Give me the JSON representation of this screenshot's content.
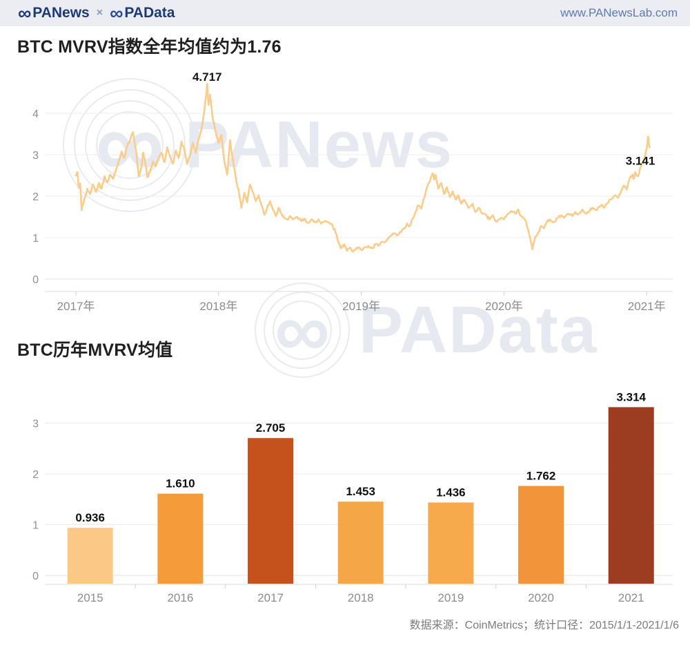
{
  "header": {
    "logo1": "PANews",
    "separator": "×",
    "logo2": "PAData",
    "url": "www.PANewsLab.com",
    "brand_color": "#1c3a7a"
  },
  "icons": {
    "infinity": "∞"
  },
  "watermarks": {
    "w1": "PANews",
    "w2": "PAData"
  },
  "footer": {
    "source": "数据来源：CoinMetrics；统计口径：2015/1/1-2021/1/6"
  },
  "chart_data": [
    {
      "type": "line",
      "title": "BTC MVRV指数全年均值约为1.76",
      "xlabel": "",
      "ylabel": "",
      "xticklabels": [
        "2017年",
        "2018年",
        "2019年",
        "2020年",
        "2021年"
      ],
      "xtick_years": [
        2017,
        2018,
        2019,
        2020,
        2021
      ],
      "yticks": [
        0,
        1,
        2,
        3,
        4
      ],
      "ylim": [
        0,
        4.8
      ],
      "xlim": [
        2016.95,
        2021.05
      ],
      "grid": true,
      "legend": "none",
      "line_gradient_low_to_high": [
        "#fbcc8a",
        "#f5a94e",
        "#e87f2e",
        "#c2490f",
        "#9e2f0c"
      ],
      "annotations": [
        {
          "x": 2017.92,
          "v": 4.717,
          "label": "4.717"
        },
        {
          "x": 2020.98,
          "v": 3.141,
          "label": "3.141"
        }
      ],
      "points": [
        [
          2017.0,
          2.5
        ],
        [
          2017.01,
          2.58
        ],
        [
          2017.02,
          2.2
        ],
        [
          2017.03,
          2.3
        ],
        [
          2017.04,
          1.66
        ],
        [
          2017.06,
          1.95
        ],
        [
          2017.08,
          2.18
        ],
        [
          2017.1,
          2.05
        ],
        [
          2017.12,
          2.28
        ],
        [
          2017.14,
          2.1
        ],
        [
          2017.16,
          2.32
        ],
        [
          2017.18,
          2.18
        ],
        [
          2017.2,
          2.48
        ],
        [
          2017.22,
          2.34
        ],
        [
          2017.24,
          2.52
        ],
        [
          2017.26,
          2.42
        ],
        [
          2017.28,
          2.62
        ],
        [
          2017.3,
          2.85
        ],
        [
          2017.32,
          3.08
        ],
        [
          2017.34,
          2.92
        ],
        [
          2017.36,
          3.22
        ],
        [
          2017.38,
          3.36
        ],
        [
          2017.4,
          3.55
        ],
        [
          2017.42,
          3.12
        ],
        [
          2017.44,
          2.48
        ],
        [
          2017.46,
          2.72
        ],
        [
          2017.47,
          3.05
        ],
        [
          2017.48,
          2.92
        ],
        [
          2017.5,
          2.46
        ],
        [
          2017.52,
          2.6
        ],
        [
          2017.54,
          2.84
        ],
        [
          2017.56,
          2.72
        ],
        [
          2017.58,
          2.92
        ],
        [
          2017.6,
          3.05
        ],
        [
          2017.62,
          2.82
        ],
        [
          2017.64,
          3.18
        ],
        [
          2017.66,
          2.95
        ],
        [
          2017.68,
          2.78
        ],
        [
          2017.7,
          3.1
        ],
        [
          2017.72,
          2.92
        ],
        [
          2017.74,
          3.32
        ],
        [
          2017.76,
          3.12
        ],
        [
          2017.78,
          2.78
        ],
        [
          2017.8,
          2.98
        ],
        [
          2017.82,
          3.28
        ],
        [
          2017.84,
          3.05
        ],
        [
          2017.86,
          3.38
        ],
        [
          2017.88,
          3.62
        ],
        [
          2017.9,
          4.05
        ],
        [
          2017.92,
          4.717
        ],
        [
          2017.93,
          4.2
        ],
        [
          2017.94,
          4.45
        ],
        [
          2017.96,
          3.85
        ],
        [
          2017.98,
          3.55
        ],
        [
          2018.0,
          3.28
        ],
        [
          2018.02,
          3.48
        ],
        [
          2018.04,
          2.85
        ],
        [
          2018.06,
          2.52
        ],
        [
          2018.08,
          3.35
        ],
        [
          2018.1,
          2.88
        ],
        [
          2018.12,
          2.45
        ],
        [
          2018.14,
          2.15
        ],
        [
          2018.16,
          1.72
        ],
        [
          2018.18,
          2.08
        ],
        [
          2018.2,
          1.85
        ],
        [
          2018.22,
          2.28
        ],
        [
          2018.24,
          2.1
        ],
        [
          2018.26,
          1.88
        ],
        [
          2018.28,
          2.02
        ],
        [
          2018.3,
          1.78
        ],
        [
          2018.32,
          1.55
        ],
        [
          2018.34,
          1.72
        ],
        [
          2018.36,
          1.88
        ],
        [
          2018.38,
          1.68
        ],
        [
          2018.4,
          1.52
        ],
        [
          2018.42,
          1.72
        ],
        [
          2018.44,
          1.58
        ],
        [
          2018.46,
          1.48
        ],
        [
          2018.48,
          1.44
        ],
        [
          2018.5,
          1.52
        ],
        [
          2018.52,
          1.44
        ],
        [
          2018.55,
          1.5
        ],
        [
          2018.58,
          1.4
        ],
        [
          2018.6,
          1.46
        ],
        [
          2018.62,
          1.36
        ],
        [
          2018.65,
          1.44
        ],
        [
          2018.68,
          1.38
        ],
        [
          2018.7,
          1.44
        ],
        [
          2018.72,
          1.34
        ],
        [
          2018.75,
          1.4
        ],
        [
          2018.78,
          1.34
        ],
        [
          2018.8,
          1.28
        ],
        [
          2018.82,
          1.12
        ],
        [
          2018.84,
          0.88
        ],
        [
          2018.86,
          0.74
        ],
        [
          2018.88,
          0.84
        ],
        [
          2018.9,
          0.68
        ],
        [
          2018.92,
          0.76
        ],
        [
          2018.94,
          0.66
        ],
        [
          2018.96,
          0.72
        ],
        [
          2018.98,
          0.76
        ],
        [
          2019.0,
          0.7
        ],
        [
          2019.02,
          0.76
        ],
        [
          2019.05,
          0.8
        ],
        [
          2019.08,
          0.74
        ],
        [
          2019.1,
          0.84
        ],
        [
          2019.12,
          0.8
        ],
        [
          2019.15,
          0.9
        ],
        [
          2019.18,
          0.95
        ],
        [
          2019.2,
          1.02
        ],
        [
          2019.22,
          1.1
        ],
        [
          2019.25,
          1.05
        ],
        [
          2019.28,
          1.14
        ],
        [
          2019.3,
          1.22
        ],
        [
          2019.32,
          1.34
        ],
        [
          2019.34,
          1.28
        ],
        [
          2019.36,
          1.45
        ],
        [
          2019.38,
          1.62
        ],
        [
          2019.4,
          1.78
        ],
        [
          2019.42,
          1.7
        ],
        [
          2019.44,
          1.95
        ],
        [
          2019.46,
          2.2
        ],
        [
          2019.48,
          2.35
        ],
        [
          2019.5,
          2.55
        ],
        [
          2019.51,
          2.4
        ],
        [
          2019.52,
          2.52
        ],
        [
          2019.54,
          2.18
        ],
        [
          2019.56,
          2.32
        ],
        [
          2019.58,
          2.05
        ],
        [
          2019.6,
          2.22
        ],
        [
          2019.62,
          1.98
        ],
        [
          2019.64,
          2.12
        ],
        [
          2019.66,
          1.92
        ],
        [
          2019.68,
          2.02
        ],
        [
          2019.7,
          1.82
        ],
        [
          2019.72,
          1.92
        ],
        [
          2019.75,
          1.72
        ],
        [
          2019.78,
          1.82
        ],
        [
          2019.8,
          1.62
        ],
        [
          2019.82,
          1.72
        ],
        [
          2019.85,
          1.58
        ],
        [
          2019.88,
          1.52
        ],
        [
          2019.9,
          1.44
        ],
        [
          2019.92,
          1.54
        ],
        [
          2019.95,
          1.38
        ],
        [
          2019.98,
          1.48
        ],
        [
          2020.0,
          1.44
        ],
        [
          2020.02,
          1.54
        ],
        [
          2020.05,
          1.64
        ],
        [
          2020.08,
          1.58
        ],
        [
          2020.1,
          1.68
        ],
        [
          2020.12,
          1.52
        ],
        [
          2020.15,
          1.42
        ],
        [
          2020.17,
          1.18
        ],
        [
          2020.2,
          0.72
        ],
        [
          2020.22,
          1.02
        ],
        [
          2020.24,
          1.12
        ],
        [
          2020.26,
          1.28
        ],
        [
          2020.28,
          1.22
        ],
        [
          2020.3,
          1.38
        ],
        [
          2020.32,
          1.44
        ],
        [
          2020.35,
          1.38
        ],
        [
          2020.38,
          1.48
        ],
        [
          2020.4,
          1.54
        ],
        [
          2020.42,
          1.48
        ],
        [
          2020.45,
          1.58
        ],
        [
          2020.48,
          1.52
        ],
        [
          2020.5,
          1.62
        ],
        [
          2020.52,
          1.56
        ],
        [
          2020.55,
          1.68
        ],
        [
          2020.58,
          1.58
        ],
        [
          2020.6,
          1.64
        ],
        [
          2020.62,
          1.72
        ],
        [
          2020.65,
          1.66
        ],
        [
          2020.68,
          1.78
        ],
        [
          2020.7,
          1.72
        ],
        [
          2020.72,
          1.82
        ],
        [
          2020.75,
          1.92
        ],
        [
          2020.78,
          2.02
        ],
        [
          2020.8,
          1.96
        ],
        [
          2020.82,
          2.12
        ],
        [
          2020.84,
          2.26
        ],
        [
          2020.86,
          2.16
        ],
        [
          2020.88,
          2.42
        ],
        [
          2020.9,
          2.52
        ],
        [
          2020.91,
          2.42
        ],
        [
          2020.92,
          2.58
        ],
        [
          2020.94,
          2.48
        ],
        [
          2020.96,
          2.72
        ],
        [
          2020.98,
          2.88
        ],
        [
          2021.0,
          3.141
        ],
        [
          2021.01,
          3.44
        ],
        [
          2021.02,
          3.18
        ]
      ]
    },
    {
      "type": "bar",
      "title": "BTC历年MVRV均值",
      "categories": [
        "2015",
        "2016",
        "2017",
        "2018",
        "2019",
        "2020",
        "2021"
      ],
      "values": [
        0.936,
        1.61,
        2.705,
        1.453,
        1.436,
        1.762,
        3.314
      ],
      "bar_colors": [
        "#fcc886",
        "#f59b3a",
        "#c5521d",
        "#f5a747",
        "#f6aa4c",
        "#f1943a",
        "#9c3d22"
      ],
      "yticks": [
        0,
        1,
        2,
        3
      ],
      "ylim": [
        0,
        3.6
      ],
      "grid": true,
      "legend": "none",
      "value_label_decimals": 3
    }
  ]
}
